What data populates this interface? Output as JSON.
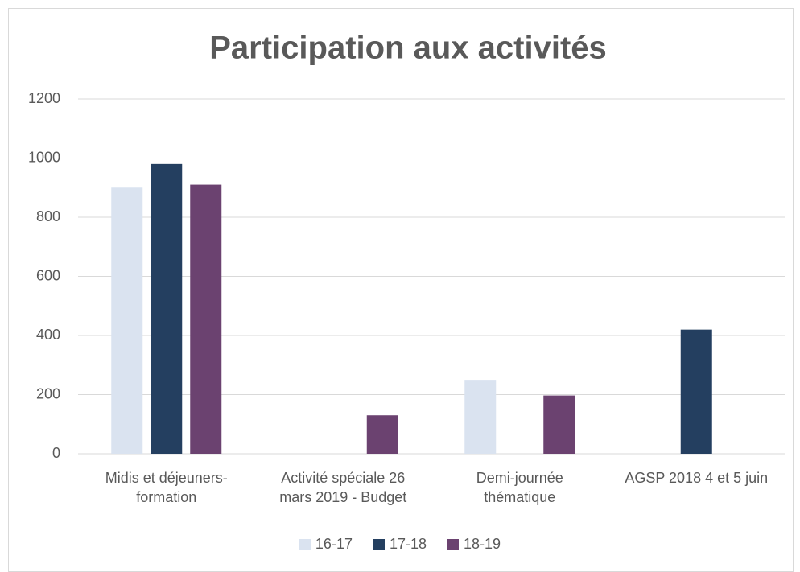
{
  "chart_data": {
    "type": "bar",
    "title": "Participation aux activités",
    "categories": [
      "Midis et déjeuners-formation",
      "Activité spéciale 26 mars 2019 - Budget",
      "Demi-journée thématique",
      "AGSP 2018 4 et 5 juin"
    ],
    "series": [
      {
        "name": "16-17",
        "color": "#dae3f0",
        "values": [
          900,
          null,
          250,
          null
        ]
      },
      {
        "name": "17-18",
        "color": "#243f60",
        "values": [
          980,
          null,
          null,
          420
        ]
      },
      {
        "name": "18-19",
        "color": "#6b4270",
        "values": [
          910,
          130,
          197,
          null
        ]
      }
    ],
    "ylim": [
      0,
      1200
    ],
    "yticks": [
      0,
      200,
      400,
      600,
      800,
      1000,
      1200
    ],
    "grid": true,
    "legend": "bottom"
  }
}
